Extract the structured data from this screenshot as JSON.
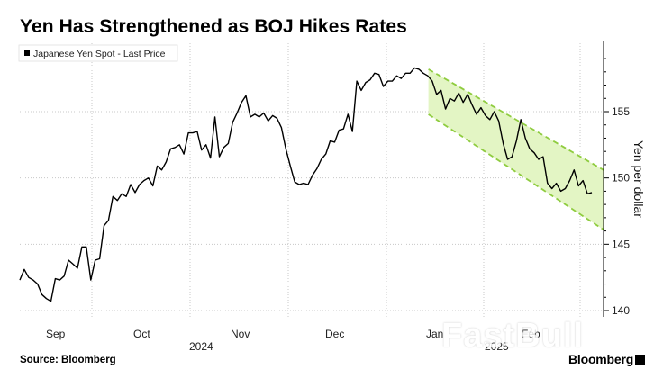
{
  "title": "Yen Has Strengthened as BOJ Hikes Rates",
  "source": "Source: Bloomberg",
  "brand": "Bloomberg",
  "watermark": "FastBull",
  "colors": {
    "line": "#000000",
    "channel_fill": "#e3f5c4",
    "channel_border": "#8fcc3f",
    "grid": "#c8c8c8"
  },
  "chart_data": {
    "type": "line",
    "title": "Yen Has Strengthened as BOJ Hikes Rates",
    "ylabel": "Yen per dollar",
    "xlabel": "",
    "ylim": [
      139,
      160
    ],
    "yticks": [
      140,
      145,
      150,
      155
    ],
    "x_month_labels": [
      "Sep",
      "Oct",
      "Nov",
      "Dec",
      "Jan",
      "Feb"
    ],
    "x_year_labels": [
      "2024",
      "2025"
    ],
    "grid": true,
    "legend": {
      "position": "top-left",
      "entries": [
        "Japanese Yen Spot - Last Price"
      ]
    },
    "series": [
      {
        "name": "Japanese Yen Spot - Last Price",
        "values": [
          142.3,
          143.1,
          142.5,
          142.3,
          142.0,
          141.2,
          140.9,
          140.7,
          142.4,
          142.3,
          142.6,
          143.8,
          143.5,
          143.2,
          144.8,
          144.8,
          142.3,
          143.8,
          143.9,
          146.4,
          146.8,
          148.6,
          148.3,
          148.8,
          148.6,
          149.5,
          148.9,
          149.5,
          149.8,
          150.0,
          149.4,
          150.9,
          150.6,
          151.2,
          152.2,
          152.3,
          152.5,
          151.8,
          153.4,
          153.4,
          153.5,
          152.1,
          152.5,
          151.5,
          154.6,
          151.6,
          152.3,
          152.6,
          154.2,
          154.9,
          155.7,
          156.2,
          154.6,
          154.8,
          154.6,
          154.9,
          154.3,
          154.7,
          154.5,
          153.8,
          152.2,
          150.9,
          149.7,
          149.5,
          149.6,
          149.5,
          150.2,
          150.7,
          151.4,
          151.8,
          152.8,
          152.7,
          153.6,
          153.7,
          154.8,
          153.5,
          157.3,
          156.6,
          157.2,
          157.4,
          157.9,
          157.8,
          156.9,
          157.3,
          157.3,
          157.7,
          157.5,
          157.9,
          157.9,
          158.3,
          158.2,
          157.9,
          157.7,
          157.3,
          156.3,
          156.6,
          155.2,
          156.0,
          155.8,
          156.4,
          155.7,
          156.3,
          155.5,
          154.8,
          155.3,
          154.7,
          154.4,
          155.0,
          154.3,
          152.6,
          151.4,
          151.6,
          152.8,
          154.4,
          153.0,
          152.2,
          151.9,
          151.4,
          151.6,
          149.6,
          149.2,
          149.6,
          149.0,
          149.2,
          149.8,
          150.6,
          149.4,
          149.8,
          148.8,
          148.9
        ]
      }
    ],
    "channel": {
      "upper": {
        "start": [
          0.7,
          158.2
        ],
        "end": [
          1.0,
          150.6
        ]
      },
      "lower": {
        "start": [
          0.7,
          154.8
        ],
        "end": [
          1.0,
          146.1
        ]
      }
    }
  }
}
